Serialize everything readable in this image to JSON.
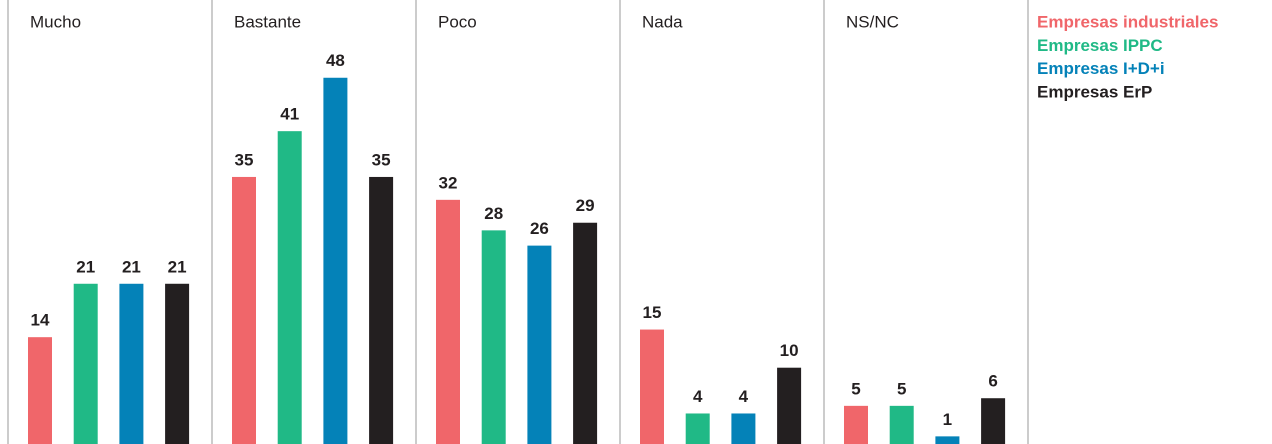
{
  "chart_data": {
    "type": "bar",
    "categories": [
      "Mucho",
      "Bastante",
      "Poco",
      "Nada",
      "NS/NC"
    ],
    "series": [
      {
        "name": "Empresas industriales",
        "color": "#f0666a",
        "values": [
          14,
          35,
          32,
          15,
          5
        ]
      },
      {
        "name": "Empresas IPPC",
        "color": "#20b986",
        "values": [
          21,
          41,
          28,
          4,
          5
        ]
      },
      {
        "name": "Empresas I+D+i",
        "color": "#0482b8",
        "values": [
          21,
          48,
          26,
          4,
          1
        ]
      },
      {
        "name": "Empresas ErP",
        "color": "#231f20",
        "values": [
          21,
          35,
          29,
          10,
          6
        ]
      }
    ]
  }
}
